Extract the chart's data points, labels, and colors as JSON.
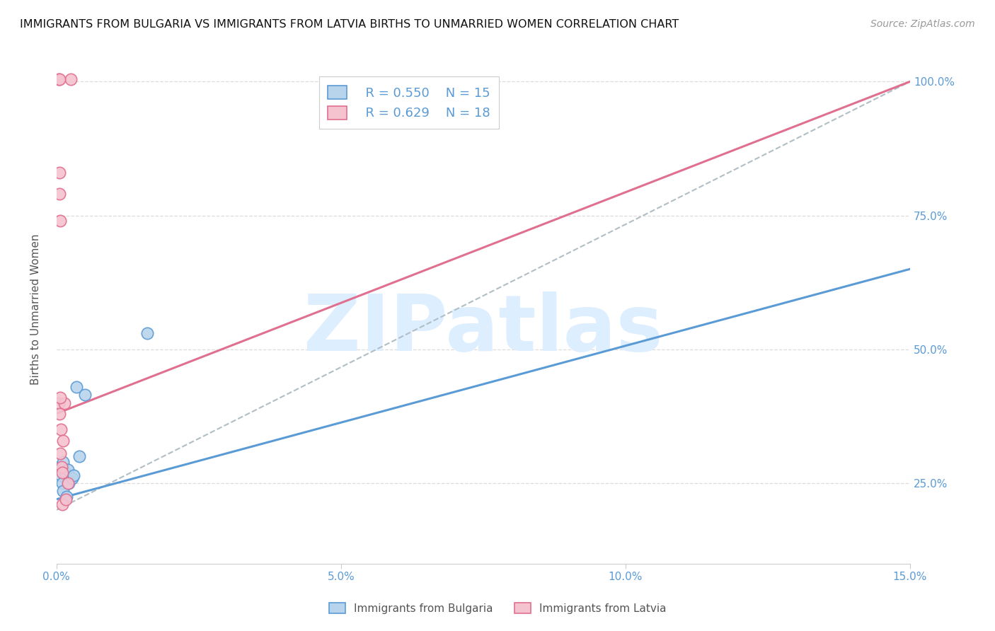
{
  "title": "IMMIGRANTS FROM BULGARIA VS IMMIGRANTS FROM LATVIA BIRTHS TO UNMARRIED WOMEN CORRELATION CHART",
  "source": "Source: ZipAtlas.com",
  "ylabel": "Births to Unmarried Women",
  "xlim": [
    0.0,
    15.0
  ],
  "ylim": [
    10.0,
    105.0
  ],
  "bulgaria_x": [
    0.05,
    0.08,
    0.1,
    0.12,
    0.12,
    0.15,
    0.18,
    0.2,
    0.22,
    0.28,
    0.3,
    0.35,
    0.4,
    0.5,
    1.6
  ],
  "bulgaria_y": [
    28.0,
    26.5,
    25.0,
    29.0,
    23.5,
    27.0,
    22.5,
    27.5,
    25.0,
    26.0,
    26.5,
    43.0,
    30.0,
    41.5,
    53.0
  ],
  "latvia_x": [
    0.04,
    0.05,
    0.06,
    0.07,
    0.07,
    0.08,
    0.09,
    0.1,
    0.1,
    0.12,
    0.14,
    0.16,
    0.2,
    0.25,
    0.04,
    0.05,
    0.06,
    0.07
  ],
  "latvia_y": [
    40.0,
    83.0,
    79.0,
    30.5,
    74.0,
    35.0,
    28.0,
    27.0,
    21.0,
    33.0,
    40.0,
    22.0,
    25.0,
    100.5,
    100.5,
    100.5,
    38.0,
    41.0
  ],
  "bulgaria_line_x0": 0.0,
  "bulgaria_line_y0": 22.0,
  "bulgaria_line_x1": 15.0,
  "bulgaria_line_y1": 65.0,
  "latvia_line_x0": 0.0,
  "latvia_line_y0": 38.0,
  "latvia_line_x1": 15.0,
  "latvia_line_y1": 100.0,
  "ref_line_x0": 0.0,
  "ref_line_y0": 20.0,
  "ref_line_x1": 15.0,
  "ref_line_y1": 100.0,
  "bulgaria_color": "#b8d4ed",
  "latvia_color": "#f5c2d0",
  "bulgaria_line_color": "#5b9bd5",
  "latvia_line_color": "#e07090",
  "ref_line_color": "#b0bec5",
  "bulgaria_R": 0.55,
  "bulgaria_N": 15,
  "latvia_R": 0.629,
  "latvia_N": 18,
  "watermark": "ZIPatlas",
  "watermark_color": "#ddeeff",
  "title_fontsize": 11.5,
  "source_fontsize": 10,
  "legend_fontsize": 13,
  "axis_tick_color": "#5b9bd5",
  "ylabel_color": "#555555",
  "grid_color": "#dddddd"
}
